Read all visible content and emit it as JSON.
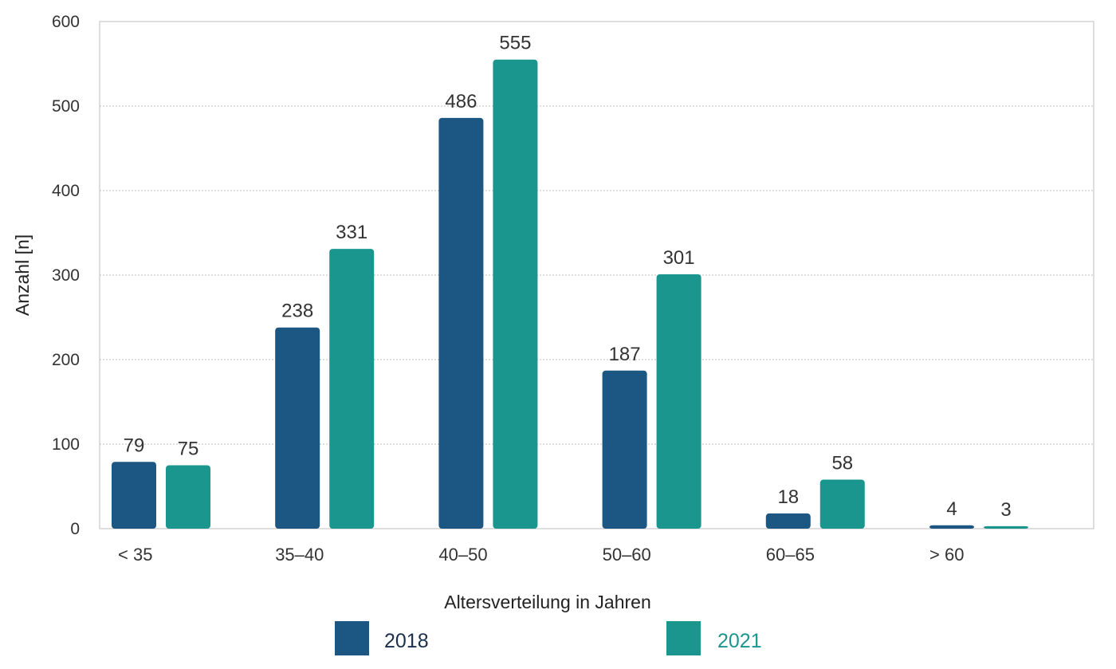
{
  "chart_data": {
    "type": "bar",
    "categories": [
      "< 35",
      "35–40",
      "40–50",
      "50–60",
      "60–65",
      "> 60"
    ],
    "series": [
      {
        "name": "2018",
        "values": [
          79,
          238,
          486,
          187,
          18,
          4
        ]
      },
      {
        "name": "2021",
        "values": [
          75,
          331,
          555,
          301,
          58,
          3
        ]
      }
    ],
    "xlabel": "Altersverteilung in Jahren",
    "ylabel": "Anzahl [n]",
    "ylim": [
      0,
      600
    ],
    "yticks": [
      "0",
      "100",
      "200",
      "300",
      "400",
      "500",
      "600"
    ],
    "grid": true,
    "legend": "bottom",
    "colors": {
      "2018": "#1c5784",
      "2021": "#1a968f",
      "legend_text_2018": "#1c2f4d",
      "legend_text_2021": "#1a968f"
    }
  }
}
